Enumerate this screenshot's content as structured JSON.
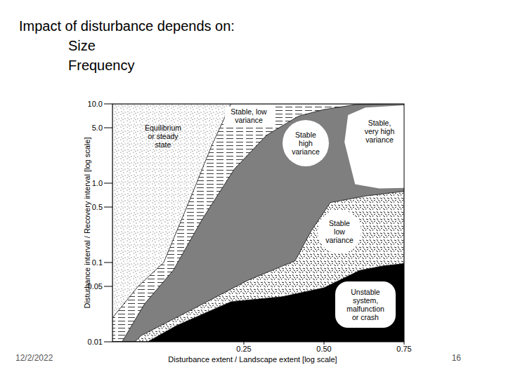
{
  "slide": {
    "heading": "Impact of disturbance depends on:",
    "bullets": [
      "Size",
      "Frequency"
    ],
    "date": "12/2/2022",
    "page_number": 16
  },
  "chart_data": {
    "type": "area",
    "x_label": "Disturbance extent / Landscape extent [log scale]",
    "y_label": "Disturbance interval / Recovery interval [log scale]",
    "log": "y",
    "grid": false,
    "xlim": [
      -0.16,
      0.75
    ],
    "ylim": [
      0.01,
      10
    ],
    "xticks": [
      0.25,
      {
        "value": 0.5,
        "label": "0.50"
      },
      0.75
    ],
    "yticks": [
      0.01,
      0.05,
      0.1,
      0.5,
      {
        "value": 1,
        "label": "1.0"
      },
      {
        "value": 5,
        "label": "5.0"
      },
      {
        "value": 10,
        "label": "10.0"
      }
    ],
    "series": [
      {
        "name": "Equilibrium\nor steady\nstate",
        "type": "area",
        "color": "#ffffff",
        "x": [
          -0.16,
          0.75
        ],
        "values": [
          10,
          10
        ]
      },
      {
        "name": "Stable, low\nvariance",
        "type": "area",
        "color": "#ffffff",
        "x": [
          -0.16,
          -0.08,
          0,
          0.08,
          0.15,
          0.21
        ],
        "values": [
          0.02,
          0.05,
          0.1,
          0.6,
          3,
          10
        ]
      },
      {
        "name": "Stable\nhigh\nvariance",
        "type": "area",
        "color": "#7f7f7f",
        "x": [
          -0.13,
          -0.06,
          0.03,
          0.12,
          0.22,
          0.32,
          0.42,
          0.5,
          0.6,
          0.75
        ],
        "values": [
          0.01,
          0.03,
          0.08,
          0.35,
          1.5,
          4,
          7,
          8.5,
          9.8,
          10
        ]
      },
      {
        "name": "Stable\nlow\nvariance",
        "type": "area",
        "color": "#ffffff",
        "x": [
          -0.09,
          -0.07,
          0.1,
          0.26,
          0.41,
          0.46,
          0.52,
          0.63,
          0.75
        ],
        "values": [
          0.01,
          0.012,
          0.027,
          0.059,
          0.105,
          0.25,
          0.57,
          0.69,
          0.79
        ]
      },
      {
        "name": "Unstable\nsystem,\nmalfunction\nor crash",
        "type": "area",
        "color": "#000000",
        "x": [
          -0.05,
          0.04,
          0.21,
          0.37,
          0.5,
          0.61,
          0.68,
          0.75
        ],
        "values": [
          0.01,
          0.016,
          0.032,
          0.037,
          0.048,
          0.079,
          0.09,
          0.097
        ]
      },
      {
        "name": "Stable,\nvery high\nvariance",
        "type": "polygon",
        "color": "#ffffff",
        "x": [
          0.564,
          0.575,
          0.629,
          0.75,
          0.75,
          0.673,
          0.597
        ],
        "values": [
          3.3,
          7.2,
          9.0,
          9.6,
          0.87,
          0.86,
          0.97
        ]
      }
    ]
  }
}
